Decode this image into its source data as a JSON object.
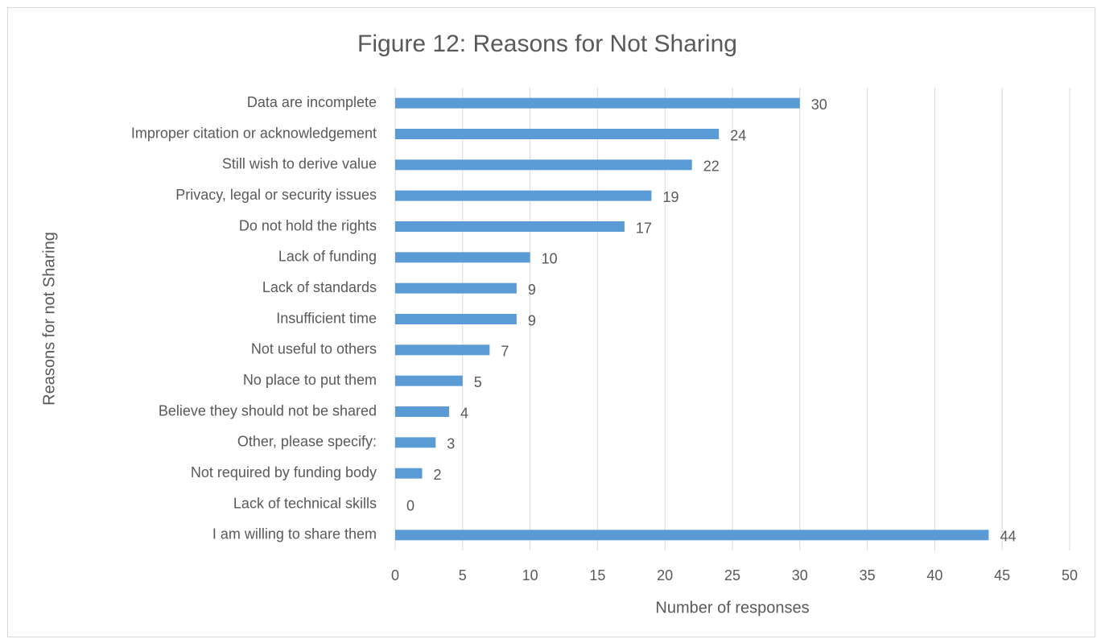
{
  "chart_data": {
    "type": "bar",
    "orientation": "horizontal",
    "title": "Figure 12: Reasons for Not Sharing",
    "x_label": "Number of responses",
    "y_label": "Reasons for not Sharing",
    "categories": [
      "Data are incomplete",
      "Improper citation or acknowledgement",
      "Still wish to derive value",
      "Privacy, legal or security issues",
      "Do not hold the rights",
      "Lack of funding",
      "Lack of standards",
      "Insufficient time",
      "Not useful to others",
      "No place to put them",
      "Believe they should not be shared",
      "Other, please specify:",
      "Not required by funding body",
      "Lack of technical skills",
      "I am willing to share them"
    ],
    "values": [
      30,
      24,
      22,
      19,
      17,
      10,
      9,
      9,
      7,
      5,
      4,
      3,
      2,
      0,
      44
    ],
    "color": "#5b9bd5",
    "xlim": [
      0,
      50
    ],
    "xticks": [
      0,
      5,
      10,
      15,
      20,
      25,
      30,
      35,
      40,
      45,
      50
    ],
    "grid": true
  }
}
